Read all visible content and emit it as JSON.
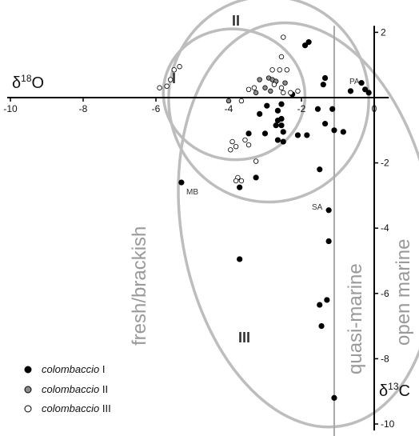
{
  "chart_data": {
    "type": "scatter",
    "x_axis": {
      "label_prefix": "δ",
      "label_sup": "18",
      "label_suffix": "O",
      "range": [
        -10,
        0.4
      ],
      "ticks": [
        -10,
        -8,
        -6,
        -4,
        -2,
        0
      ],
      "tick_labels": [
        "-10",
        "-8",
        "-6",
        "-4",
        "-2",
        "0"
      ]
    },
    "y_axis": {
      "label_prefix": "δ",
      "label_sup": "13",
      "label_suffix": "C",
      "range": [
        -10.2,
        2.2
      ],
      "ticks": [
        2,
        -2,
        -4,
        -6,
        -8,
        -10
      ],
      "tick_labels": [
        "2",
        "-2",
        "-4",
        "-6",
        "-8",
        "-10"
      ]
    },
    "zones": [
      {
        "label": "fresh/brackish",
        "color": "#9a9a9a"
      },
      {
        "label": "quasi-marine",
        "color": "#9a9a9a"
      },
      {
        "label": "open marine",
        "color": "#9a9a9a"
      }
    ],
    "boundary_x": -1.1,
    "group_labels": [
      "I",
      "II",
      "III"
    ],
    "ellipses": [
      {
        "group": "I",
        "cx": -3.85,
        "cy": 0.1,
        "rx": 1.95,
        "ry": 2.0,
        "angle_deg": 8
      },
      {
        "group": "II",
        "cx": -2.9,
        "cy": -0.05,
        "rx": 2.75,
        "ry": 3.15,
        "angle_deg": 0
      },
      {
        "group": "III",
        "cx": -1.85,
        "cy": -3.9,
        "rx": 3.45,
        "ry": 6.25,
        "angle_deg": -10
      }
    ],
    "legend": {
      "placement": "bottom-left",
      "entries": [
        {
          "name": "colombaccio",
          "numeral": "I",
          "fill": "#000000",
          "stroke": "#000000"
        },
        {
          "name": "colombaccio",
          "numeral": "II",
          "fill": "#8c8c8c",
          "stroke": "#000000"
        },
        {
          "name": "colombaccio",
          "numeral": "III",
          "fill": "#ffffff",
          "stroke": "#000000"
        }
      ]
    },
    "series": [
      {
        "name": "colombaccio I",
        "fill": "#000000",
        "points": [
          [
            -1.9,
            1.6
          ],
          [
            -1.8,
            1.7
          ],
          [
            -1.4,
            0.4
          ],
          [
            -1.35,
            0.6
          ],
          [
            -0.35,
            0.45
          ],
          [
            -0.25,
            0.25
          ],
          [
            -0.15,
            0.15
          ],
          [
            -0.65,
            0.2
          ],
          [
            -2.25,
            0.1
          ],
          [
            -2.65,
            -0.4
          ],
          [
            -2.55,
            -0.2
          ],
          [
            -2.95,
            -0.25
          ],
          [
            -3.15,
            -0.5
          ],
          [
            -2.65,
            -0.7
          ],
          [
            -2.55,
            -0.65
          ],
          [
            -2.7,
            -0.85
          ],
          [
            -2.55,
            -0.85
          ],
          [
            -2.5,
            -1.05
          ],
          [
            -2.65,
            -1.3
          ],
          [
            -2.5,
            -1.35
          ],
          [
            -3.0,
            -1.1
          ],
          [
            -3.45,
            -1.1
          ],
          [
            -1.55,
            -0.35
          ],
          [
            -1.15,
            -0.35
          ],
          [
            -1.35,
            -0.8
          ],
          [
            -1.1,
            -1.0
          ],
          [
            -0.85,
            -1.05
          ],
          [
            -2.1,
            -1.15
          ],
          [
            -1.85,
            -1.15
          ],
          [
            -3.25,
            -2.45
          ],
          [
            -3.7,
            -2.75
          ],
          [
            -5.3,
            -2.6
          ],
          [
            -1.5,
            -2.2
          ],
          [
            -1.25,
            -3.45
          ],
          [
            -1.25,
            -4.4
          ],
          [
            -3.7,
            -4.95
          ],
          [
            -1.3,
            -6.2
          ],
          [
            -1.5,
            -6.35
          ],
          [
            -1.45,
            -7.0
          ],
          [
            -1.1,
            -9.2
          ]
        ]
      },
      {
        "name": "colombaccio II",
        "fill": "#8c8c8c",
        "points": [
          [
            -2.9,
            0.6
          ],
          [
            -2.8,
            0.55
          ],
          [
            -3.15,
            0.55
          ],
          [
            -2.7,
            0.5
          ],
          [
            -2.45,
            0.45
          ],
          [
            -3.0,
            0.3
          ],
          [
            -2.85,
            0.2
          ],
          [
            -3.25,
            0.15
          ],
          [
            -4.0,
            -0.1
          ]
        ]
      },
      {
        "name": "colombaccio III",
        "fill": "#ffffff",
        "points": [
          [
            -5.35,
            0.95
          ],
          [
            -5.5,
            0.85
          ],
          [
            -5.6,
            0.55
          ],
          [
            -5.7,
            0.35
          ],
          [
            -5.9,
            0.3
          ],
          [
            -2.5,
            1.85
          ],
          [
            -2.55,
            1.25
          ],
          [
            -2.6,
            0.85
          ],
          [
            -2.4,
            0.85
          ],
          [
            -2.8,
            0.85
          ],
          [
            -2.75,
            0.4
          ],
          [
            -2.55,
            0.3
          ],
          [
            -2.5,
            0.15
          ],
          [
            -2.3,
            0.15
          ],
          [
            -2.1,
            0.2
          ],
          [
            -3.3,
            0.3
          ],
          [
            -3.45,
            0.25
          ],
          [
            -3.65,
            -0.1
          ],
          [
            -3.55,
            -1.3
          ],
          [
            -3.45,
            -1.45
          ],
          [
            -3.8,
            -1.5
          ],
          [
            -3.9,
            -1.35
          ],
          [
            -3.25,
            -1.95
          ],
          [
            -3.75,
            -2.45
          ],
          [
            -3.8,
            -2.55
          ],
          [
            -3.65,
            -2.55
          ],
          [
            -3.95,
            -1.6
          ]
        ]
      }
    ],
    "point_labels": [
      {
        "text": "PA",
        "x": -0.95,
        "y": 0.45
      },
      {
        "text": "MB",
        "x": -5.35,
        "y": -2.95
      },
      {
        "text": "SA",
        "x": -1.95,
        "y": -3.45
      }
    ]
  }
}
